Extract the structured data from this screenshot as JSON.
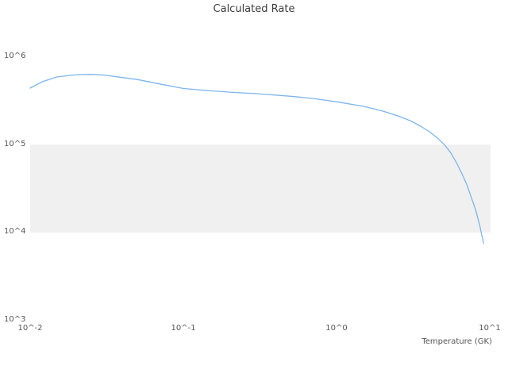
{
  "chart_data": {
    "type": "line",
    "title": "Calculated Rate",
    "xlabel": "Temperature (GK)",
    "ylabel": "",
    "x_scale": "log",
    "y_scale": "log",
    "xlim": [
      0.01,
      10
    ],
    "ylim": [
      1000,
      1000000
    ],
    "grid": false,
    "legend": "none",
    "xtick_labels": [
      "10^-2",
      "10^-1",
      "10^0",
      "10^1"
    ],
    "ytick_labels": [
      "10^3",
      "10^4",
      "10^5",
      "10^6"
    ],
    "band": {
      "from": 10000,
      "to": 100000,
      "color": "#f0f0f0"
    },
    "series": [
      {
        "name": "Calculated Rate",
        "color": "#7cb5ec",
        "x": [
          0.01,
          0.012,
          0.015,
          0.02,
          0.025,
          0.03,
          0.04,
          0.05,
          0.07,
          0.1,
          0.15,
          0.2,
          0.3,
          0.5,
          0.7,
          1.0,
          1.5,
          2.0,
          2.5,
          3.0,
          3.5,
          4.0,
          4.5,
          5.0,
          5.5,
          6.0,
          6.5,
          7.0,
          7.5,
          8.0,
          8.5,
          9.0
        ],
        "y": [
          440000,
          520000,
          590000,
          625000,
          630000,
          620000,
          580000,
          550000,
          490000,
          435000,
          410000,
          395000,
          380000,
          355000,
          335000,
          307000,
          272000,
          240000,
          212000,
          187000,
          162000,
          140000,
          119000,
          100000,
          81000,
          62000,
          47000,
          35000,
          25000,
          18000,
          12000,
          7500
        ]
      }
    ]
  }
}
